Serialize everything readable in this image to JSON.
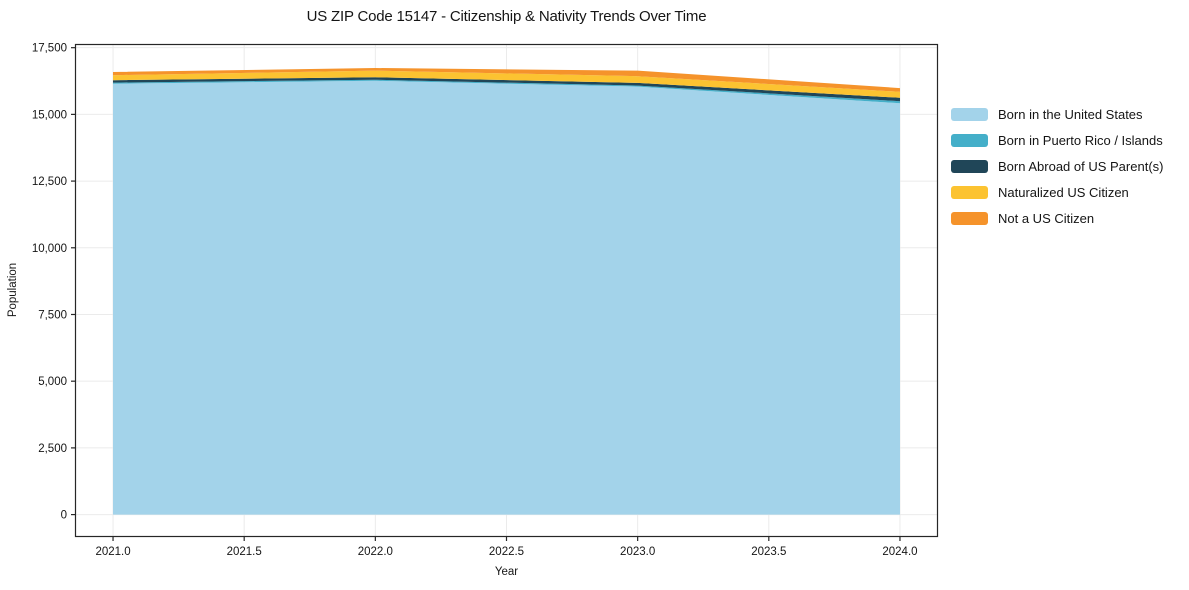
{
  "figure": {
    "title": "US ZIP Code 15147 - Citizenship & Nativity Trends Over Time",
    "xlabel": "Year",
    "ylabel": "Population"
  },
  "colors": {
    "grid": "#ebebeb",
    "spine": "#262626",
    "tick": "#262626",
    "text": "#151515"
  },
  "chart_data": {
    "type": "area",
    "stacked": true,
    "title": "US ZIP Code 15147 - Citizenship & Nativity Trends Over Time",
    "xlabel": "Year",
    "ylabel": "Population",
    "grid": true,
    "legend_position": "right-outside",
    "x": [
      2021,
      2022,
      2023,
      2024
    ],
    "series": [
      {
        "name": "Born in the United States",
        "color": "#a3d3ea",
        "values": [
          16150,
          16260,
          16040,
          15420
        ]
      },
      {
        "name": "Born in Puerto Rico / Islands",
        "color": "#44afc9",
        "values": [
          40,
          40,
          40,
          75
        ]
      },
      {
        "name": "Born Abroad of US Parent(s)",
        "color": "#204658",
        "values": [
          90,
          90,
          100,
          125
        ]
      },
      {
        "name": "Naturalized US Citizen",
        "color": "#fcc331",
        "values": [
          190,
          250,
          250,
          225
        ]
      },
      {
        "name": "Not a US Citizen",
        "color": "#f5932b",
        "values": [
          120,
          100,
          210,
          140
        ]
      }
    ],
    "stack_totals": [
      16590,
      16740,
      16640,
      15985
    ],
    "xlim": [
      2020.855,
      2024.145
    ],
    "ylim": [
      -840,
      17638
    ],
    "xticks": [
      {
        "v": 2021.0,
        "label": "2021.0"
      },
      {
        "v": 2021.5,
        "label": "2021.5"
      },
      {
        "v": 2022.0,
        "label": "2022.0"
      },
      {
        "v": 2022.5,
        "label": "2022.5"
      },
      {
        "v": 2023.0,
        "label": "2023.0"
      },
      {
        "v": 2023.5,
        "label": "2023.5"
      },
      {
        "v": 2024.0,
        "label": "2024.0"
      }
    ],
    "yticks": [
      {
        "v": 0,
        "label": "0"
      },
      {
        "v": 2500,
        "label": "2,500"
      },
      {
        "v": 5000,
        "label": "5,000"
      },
      {
        "v": 7500,
        "label": "7,500"
      },
      {
        "v": 10000,
        "label": "10,000"
      },
      {
        "v": 12500,
        "label": "12,500"
      },
      {
        "v": 15000,
        "label": "15,000"
      },
      {
        "v": 17500,
        "label": "17,500"
      }
    ]
  }
}
